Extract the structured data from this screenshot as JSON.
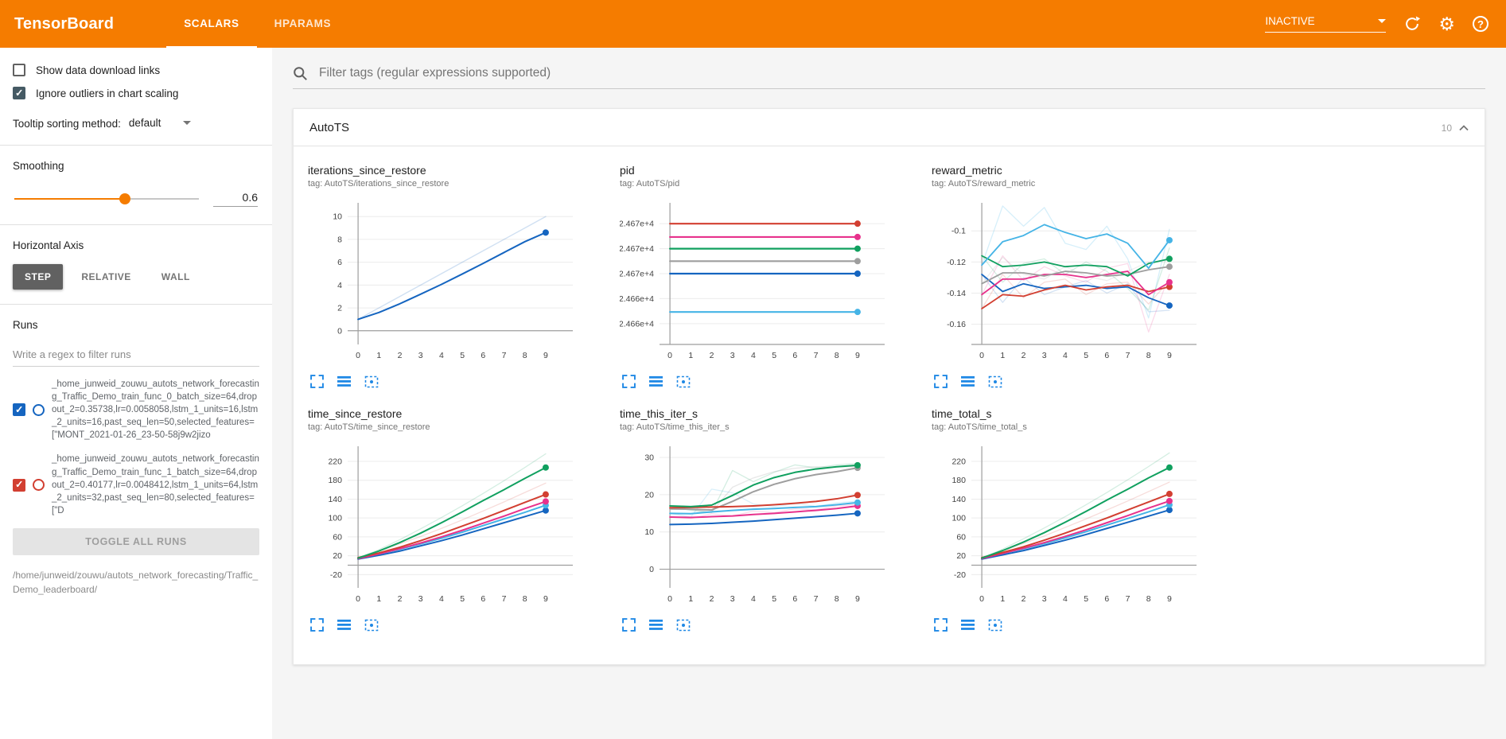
{
  "header": {
    "title": "TensorBoard",
    "tabs": [
      {
        "label": "SCALARS",
        "active": true
      },
      {
        "label": "HPARAMS",
        "active": false
      }
    ],
    "status": "INACTIVE"
  },
  "icons": {
    "settings": "⚙",
    "help": "?"
  },
  "sidebar": {
    "options": [
      {
        "label": "Show data download links",
        "checked": false
      },
      {
        "label": "Ignore outliers in chart scaling",
        "checked": true
      }
    ],
    "tooltip_sorting": {
      "label": "Tooltip sorting method:",
      "value": "default"
    },
    "smoothing": {
      "label": "Smoothing",
      "value": "0.6"
    },
    "horizontal_axis": {
      "label": "Horizontal Axis",
      "options": [
        {
          "label": "STEP",
          "selected": true
        },
        {
          "label": "RELATIVE",
          "selected": false
        },
        {
          "label": "WALL",
          "selected": false
        }
      ]
    },
    "runs": {
      "label": "Runs",
      "filter_placeholder": "Write a regex to filter runs",
      "items": [
        {
          "name": "_home_junweid_zouwu_autots_network_forecasting_Traffic_Demo_train_func_0_batch_size=64,dropout_2=0.35738,lr=0.0058058,lstm_1_units=16,lstm_2_units=16,past_seq_len=50,selected_features=[\"MONT_2021-01-26_23-50-58j9w2jizo",
          "checked": true,
          "color": "#1565c0"
        },
        {
          "name": "_home_junweid_zouwu_autots_network_forecasting_Traffic_Demo_train_func_1_batch_size=64,dropout_2=0.40177,lr=0.0048412,lstm_1_units=64,lstm_2_units=32,past_seq_len=80,selected_features=[\"D",
          "checked": true,
          "color": "#d23f31"
        }
      ],
      "toggle_all_label": "TOGGLE ALL RUNS",
      "log_dir": "/home/junweid/zouwu/autots_network_forecasting/Traffic_Demo_leaderboard/"
    }
  },
  "main": {
    "filter_placeholder": "Filter tags (regular expressions supported)",
    "section": {
      "title": "AutoTS",
      "count": "10"
    }
  },
  "palette": {
    "red": "#d23f31",
    "pink": "#e7328c",
    "green": "#10a05f",
    "gray": "#9e9e9e",
    "blue": "#1565c0",
    "cyan": "#45b4e6",
    "accent_orange": "#f57c00",
    "icon_blue": "#1e88e5"
  },
  "chart_data": [
    {
      "type": "line",
      "title": "iterations_since_restore",
      "subtitle": "tag: AutoTS/iterations_since_restore",
      "xlim": [
        -0.5,
        10.3
      ],
      "xticks": [
        0,
        1,
        2,
        3,
        4,
        5,
        6,
        7,
        8,
        9
      ],
      "ylim": [
        -1.2,
        11.2
      ],
      "yticks": [
        0,
        2,
        4,
        6,
        8,
        10
      ],
      "baseline": 0,
      "series": [
        {
          "name": "raw",
          "color": "#1565c0",
          "opacity": 0.2,
          "width": 1.4,
          "values": [
            1,
            2,
            3,
            4,
            5,
            6,
            7,
            8,
            9,
            10
          ]
        },
        {
          "name": "smoothed",
          "color": "#1565c0",
          "opacity": 1,
          "width": 2,
          "dot": true,
          "values": [
            1,
            1.6,
            2.36,
            3.2,
            4.06,
            4.97,
            5.9,
            6.85,
            7.8,
            8.6
          ]
        }
      ]
    },
    {
      "type": "line",
      "title": "pid",
      "subtitle": "tag: AutoTS/pid",
      "xlim": [
        -0.5,
        10.3
      ],
      "xticks": [
        0,
        1,
        2,
        3,
        4,
        5,
        6,
        7,
        8,
        9
      ],
      "ylim": [
        24659.5,
        24676.5
      ],
      "yticks": [
        24662,
        24665,
        24668,
        24671,
        24674
      ],
      "ytick_labels": [
        "2.466e+4",
        "2.466e+4",
        "2.467e+4",
        "2.467e+4",
        "2.467e+4"
      ],
      "baseline": "min",
      "series": [
        {
          "name": "run red",
          "color": "#d23f31",
          "const": 24674,
          "width": 2.2,
          "dot": true
        },
        {
          "name": "run pink",
          "color": "#e7328c",
          "const": 24672.4,
          "width": 2.2,
          "dot": true
        },
        {
          "name": "run green",
          "color": "#10a05f",
          "const": 24671,
          "width": 2.2,
          "dot": true
        },
        {
          "name": "run gray",
          "color": "#9e9e9e",
          "const": 24669.5,
          "width": 2.2,
          "dot": true
        },
        {
          "name": "run blue",
          "color": "#1565c0",
          "const": 24668,
          "width": 2.2,
          "dot": true
        },
        {
          "name": "run cyan",
          "color": "#45b4e6",
          "const": 24663.4,
          "width": 2.2,
          "dot": true
        }
      ]
    },
    {
      "type": "line",
      "title": "reward_metric",
      "subtitle": "tag: AutoTS/reward_metric",
      "xlim": [
        -0.5,
        10.3
      ],
      "xticks": [
        0,
        1,
        2,
        3,
        4,
        5,
        6,
        7,
        8,
        9
      ],
      "ylim": [
        -0.173,
        -0.082
      ],
      "yticks": [
        -0.16,
        -0.14,
        -0.12,
        -0.1
      ],
      "baseline": "min",
      "series": [
        {
          "name": "blue raw",
          "color": "#1565c0",
          "opacity": 0.18,
          "width": 1.3,
          "values": [
            -0.128,
            -0.146,
            -0.13,
            -0.141,
            -0.136,
            -0.132,
            -0.14,
            -0.134,
            -0.152,
            -0.151
          ]
        },
        {
          "name": "red raw",
          "color": "#d23f31",
          "opacity": 0.18,
          "width": 1.3,
          "values": [
            -0.15,
            -0.128,
            -0.143,
            -0.133,
            -0.131,
            -0.141,
            -0.134,
            -0.133,
            -0.147,
            -0.132
          ]
        },
        {
          "name": "pink raw",
          "color": "#e7328c",
          "opacity": 0.18,
          "width": 1.3,
          "values": [
            -0.141,
            -0.116,
            -0.132,
            -0.123,
            -0.129,
            -0.133,
            -0.124,
            -0.121,
            -0.165,
            -0.128
          ]
        },
        {
          "name": "green raw",
          "color": "#10a05f",
          "opacity": 0.18,
          "width": 1.3,
          "values": [
            -0.116,
            -0.133,
            -0.121,
            -0.118,
            -0.128,
            -0.12,
            -0.126,
            -0.137,
            -0.151,
            -0.111
          ]
        },
        {
          "name": "gray raw",
          "color": "#9e9e9e",
          "opacity": 0.18,
          "width": 1.3,
          "values": [
            -0.134,
            -0.117,
            -0.128,
            -0.131,
            -0.123,
            -0.129,
            -0.132,
            -0.126,
            -0.12,
            -0.119
          ]
        },
        {
          "name": "cyan raw",
          "color": "#45b4e6",
          "opacity": 0.22,
          "width": 1.3,
          "values": [
            -0.122,
            -0.084,
            -0.097,
            -0.085,
            -0.108,
            -0.112,
            -0.097,
            -0.118,
            -0.156,
            -0.099
          ]
        },
        {
          "name": "blue",
          "color": "#1565c0",
          "width": 1.8,
          "dot": true,
          "values": [
            -0.128,
            -0.139,
            -0.134,
            -0.137,
            -0.136,
            -0.135,
            -0.137,
            -0.136,
            -0.143,
            -0.148
          ]
        },
        {
          "name": "red",
          "color": "#d23f31",
          "width": 1.8,
          "dot": true,
          "values": [
            -0.15,
            -0.141,
            -0.142,
            -0.138,
            -0.135,
            -0.138,
            -0.136,
            -0.135,
            -0.139,
            -0.136
          ]
        },
        {
          "name": "pink",
          "color": "#e7328c",
          "width": 1.8,
          "dot": true,
          "values": [
            -0.141,
            -0.131,
            -0.131,
            -0.128,
            -0.128,
            -0.13,
            -0.128,
            -0.126,
            -0.141,
            -0.133
          ]
        },
        {
          "name": "gray",
          "color": "#9e9e9e",
          "width": 1.8,
          "dot": true,
          "values": [
            -0.134,
            -0.127,
            -0.127,
            -0.129,
            -0.126,
            -0.127,
            -0.129,
            -0.128,
            -0.125,
            -0.123
          ]
        },
        {
          "name": "green",
          "color": "#10a05f",
          "width": 1.8,
          "dot": true,
          "values": [
            -0.116,
            -0.123,
            -0.122,
            -0.12,
            -0.123,
            -0.122,
            -0.123,
            -0.129,
            -0.121,
            -0.118
          ]
        },
        {
          "name": "cyan",
          "color": "#45b4e6",
          "width": 1.8,
          "dot": true,
          "values": [
            -0.122,
            -0.107,
            -0.103,
            -0.096,
            -0.101,
            -0.105,
            -0.102,
            -0.108,
            -0.124,
            -0.106
          ]
        }
      ]
    },
    {
      "type": "line",
      "title": "time_since_restore",
      "subtitle": "tag: AutoTS/time_since_restore",
      "xlim": [
        -0.5,
        10.3
      ],
      "xticks": [
        0,
        1,
        2,
        3,
        4,
        5,
        6,
        7,
        8,
        9
      ],
      "ylim": [
        -48,
        252
      ],
      "yticks": [
        -20,
        20,
        60,
        100,
        140,
        180,
        220
      ],
      "baseline": 0,
      "series": [
        {
          "name": "green raw",
          "color": "#10a05f",
          "opacity": 0.18,
          "width": 1.3,
          "values": [
            15,
            33,
            54,
            77,
            101,
            126,
            152,
            179,
            207,
            236
          ]
        },
        {
          "name": "red raw",
          "color": "#d23f31",
          "opacity": 0.18,
          "width": 1.3,
          "values": [
            16,
            30,
            45,
            61,
            78,
            96,
            115,
            134,
            154,
            174
          ]
        },
        {
          "name": "blue",
          "color": "#1565c0",
          "width": 2,
          "dot": true,
          "values": [
            13,
            21,
            30,
            41,
            52,
            64,
            77,
            90,
            103,
            116
          ]
        },
        {
          "name": "cyan",
          "color": "#45b4e6",
          "width": 2,
          "dot": true,
          "values": [
            15,
            24,
            34,
            45,
            57,
            70,
            84,
            98,
            112,
            127
          ]
        },
        {
          "name": "pink",
          "color": "#e7328c",
          "width": 2,
          "dot": true,
          "values": [
            14,
            24,
            35,
            47,
            60,
            74,
            89,
            104,
            120,
            135
          ]
        },
        {
          "name": "red",
          "color": "#d23f31",
          "width": 2,
          "dot": true,
          "values": [
            16,
            26,
            38,
            52,
            67,
            83,
            99,
            116,
            133,
            150
          ]
        },
        {
          "name": "green",
          "color": "#10a05f",
          "width": 2,
          "dot": true,
          "values": [
            15,
            30,
            48,
            68,
            90,
            113,
            137,
            160,
            184,
            207
          ]
        }
      ]
    },
    {
      "type": "line",
      "title": "time_this_iter_s",
      "subtitle": "tag: AutoTS/time_this_iter_s",
      "xlim": [
        -0.5,
        10.3
      ],
      "xticks": [
        0,
        1,
        2,
        3,
        4,
        5,
        6,
        7,
        8,
        9
      ],
      "ylim": [
        -5,
        33
      ],
      "yticks": [
        0,
        10,
        20,
        30
      ],
      "baseline": 0,
      "series": [
        {
          "name": "green raw",
          "color": "#10a05f",
          "opacity": 0.18,
          "width": 1.3,
          "values": [
            17,
            15.8,
            15.2,
            26.5,
            23.5,
            26,
            28,
            27.2,
            28,
            28.4
          ]
        },
        {
          "name": "gray raw",
          "color": "#9e9e9e",
          "opacity": 0.25,
          "width": 1.3,
          "values": [
            16.2,
            16,
            15.3,
            22,
            24.5,
            26.2,
            27.1,
            27.5,
            27.4,
            27.6
          ]
        },
        {
          "name": "cyan raw",
          "color": "#45b4e6",
          "opacity": 0.2,
          "width": 1.3,
          "values": [
            15,
            14,
            21.5,
            20.5,
            17.5,
            16.8,
            17.6,
            16.9,
            17.8,
            18.3
          ]
        },
        {
          "name": "pink raw",
          "color": "#e7328c",
          "opacity": 0.18,
          "width": 1.3,
          "values": [
            14,
            13.6,
            14.9,
            14.3,
            15.6,
            15.2,
            16.2,
            16.0,
            17.0,
            17.4
          ]
        },
        {
          "name": "gray",
          "color": "#9e9e9e",
          "width": 2,
          "dot": true,
          "values": [
            16.2,
            16.1,
            15.9,
            18.2,
            20.8,
            22.8,
            24.3,
            25.4,
            26.2,
            27.2
          ]
        },
        {
          "name": "blue",
          "color": "#1565c0",
          "width": 2,
          "dot": true,
          "values": [
            12,
            12.1,
            12.3,
            12.6,
            12.9,
            13.3,
            13.7,
            14.1,
            14.5,
            15.0
          ]
        },
        {
          "name": "pink",
          "color": "#e7328c",
          "width": 2,
          "dot": true,
          "values": [
            14,
            13.9,
            14.1,
            14.3,
            14.7,
            15.0,
            15.4,
            15.8,
            16.3,
            17.0
          ]
        },
        {
          "name": "cyan",
          "color": "#45b4e6",
          "width": 2,
          "dot": true,
          "values": [
            15,
            14.9,
            15.4,
            15.8,
            16.1,
            16.3,
            16.6,
            16.8,
            17.3,
            17.9
          ]
        },
        {
          "name": "red",
          "color": "#d23f31",
          "width": 2,
          "dot": true,
          "values": [
            16.5,
            16.6,
            16.7,
            16.8,
            17.0,
            17.3,
            17.7,
            18.2,
            18.9,
            19.9
          ]
        },
        {
          "name": "green",
          "color": "#10a05f",
          "width": 2,
          "dot": true,
          "values": [
            17,
            16.8,
            17.2,
            19.8,
            22.6,
            24.6,
            26,
            26.9,
            27.5,
            27.9
          ]
        }
      ]
    },
    {
      "type": "line",
      "title": "time_total_s",
      "subtitle": "tag: AutoTS/time_total_s",
      "xlim": [
        -0.5,
        10.3
      ],
      "xticks": [
        0,
        1,
        2,
        3,
        4,
        5,
        6,
        7,
        8,
        9
      ],
      "ylim": [
        -48,
        252
      ],
      "yticks": [
        -20,
        20,
        60,
        100,
        140,
        180,
        220
      ],
      "baseline": 0,
      "series": [
        {
          "name": "green raw",
          "color": "#10a05f",
          "opacity": 0.18,
          "width": 1.3,
          "values": [
            15,
            34,
            56,
            79,
            103,
            128,
            154,
            181,
            209,
            238
          ]
        },
        {
          "name": "red raw",
          "color": "#d23f31",
          "opacity": 0.18,
          "width": 1.3,
          "values": [
            16,
            30,
            46,
            62,
            80,
            98,
            117,
            136,
            156,
            176
          ]
        },
        {
          "name": "blue",
          "color": "#1565c0",
          "width": 2,
          "dot": true,
          "values": [
            13,
            22,
            31,
            42,
            53,
            65,
            78,
            91,
            104,
            117
          ]
        },
        {
          "name": "cyan",
          "color": "#45b4e6",
          "width": 2,
          "dot": true,
          "values": [
            15,
            25,
            35,
            46,
            58,
            71,
            85,
            99,
            113,
            128
          ]
        },
        {
          "name": "pink",
          "color": "#e7328c",
          "width": 2,
          "dot": true,
          "values": [
            14,
            25,
            36,
            48,
            61,
            75,
            90,
            105,
            121,
            136
          ]
        },
        {
          "name": "red",
          "color": "#d23f31",
          "width": 2,
          "dot": true,
          "values": [
            16,
            27,
            39,
            53,
            68,
            84,
            100,
            117,
            134,
            151
          ]
        },
        {
          "name": "green",
          "color": "#10a05f",
          "width": 2,
          "dot": true,
          "values": [
            15,
            31,
            49,
            69,
            91,
            114,
            138,
            161,
            185,
            207
          ]
        }
      ]
    }
  ]
}
